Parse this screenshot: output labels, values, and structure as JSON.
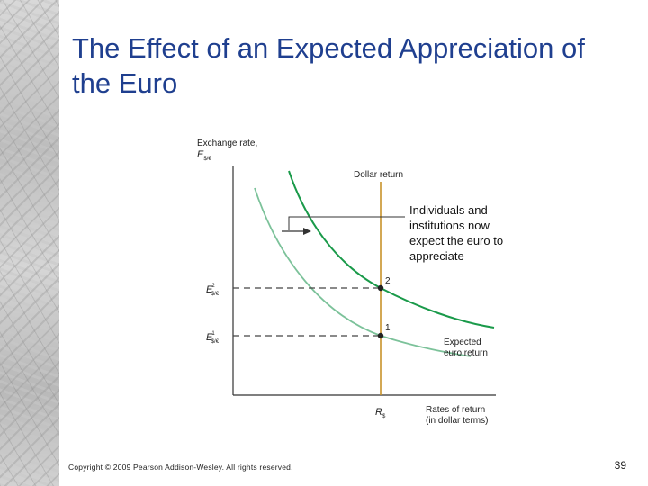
{
  "slide": {
    "title": "The Effect of an Expected Appreciation of the Euro",
    "copyright": "Copyright © 2009 Pearson Addison-Wesley. All rights reserved.",
    "page_number": "39"
  },
  "colors": {
    "title": "#1f3f8f",
    "dollar_return": "#c8922a",
    "new_curve": "#1a9a4a",
    "old_curve": "#7cc29a"
  },
  "diagram": {
    "y_axis_label_line1": "Exchange rate,",
    "y_axis_label_sym": "E",
    "y_axis_label_sub": "$/€",
    "x_axis_label_line1": "Rates of return",
    "x_axis_label_line2": "(in dollar terms)",
    "x_tick_sym": "R",
    "x_tick_sub": "$",
    "dollar_return_label": "Dollar return",
    "expected_return_line1": "Expected",
    "expected_return_line2": "euro return",
    "annotation_lines": [
      "Individuals and",
      "institutions now",
      "expect the euro to",
      "appreciate"
    ],
    "e2_sup": "2",
    "e1_sup": "1",
    "point_2": "2",
    "point_1": "1"
  }
}
